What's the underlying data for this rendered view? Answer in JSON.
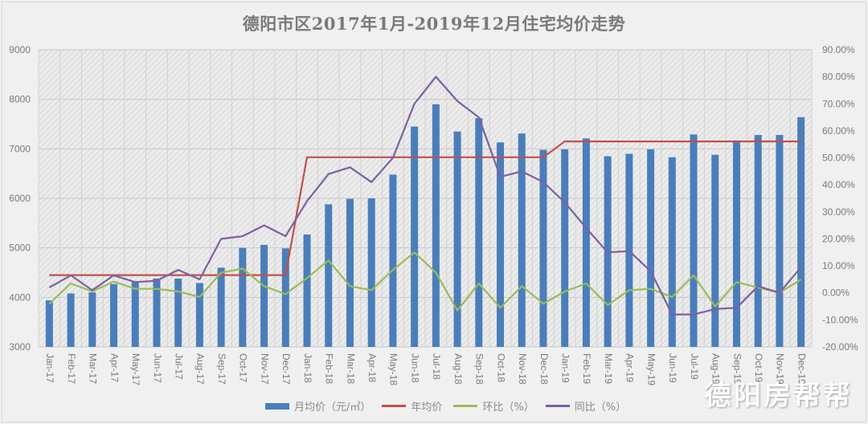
{
  "chart_data": {
    "type": "bar",
    "title": "德阳市区2017年1月-2019年12月住宅均价走势",
    "xlabel": "",
    "ylabel": "",
    "ylim": [
      3000,
      9000
    ],
    "y2lim": [
      -20,
      90
    ],
    "y_ticks": [
      "9000",
      "8000",
      "7000",
      "6000",
      "5000",
      "4000",
      "3000"
    ],
    "y2_ticks": [
      "90.00%",
      "80.00%",
      "70.00%",
      "60.00%",
      "50.00%",
      "40.00%",
      "30.00%",
      "20.00%",
      "10.00%",
      "0.00%",
      "-10.00%",
      "-20.00%"
    ],
    "grid": true,
    "legend_position": "bottom",
    "categories": [
      "Jan-17",
      "Feb-17",
      "Mar-17",
      "Apr-17",
      "May-17",
      "Jun-17",
      "Jul-17",
      "Aug-17",
      "Sep-17",
      "Oct-17",
      "Nov-17",
      "Dec-17",
      "Jan-18",
      "Feb-18",
      "Mar-18",
      "Apr-18",
      "May-18",
      "Jun-18",
      "Jul-18",
      "Aug-18",
      "Sep-18",
      "Oct-18",
      "Nov-18",
      "Dec-18",
      "Jan-19",
      "Feb-19",
      "Mar-19",
      "Apr-19",
      "May-19",
      "Jun-19",
      "Jul-19",
      "Aug-19",
      "Sep-19",
      "Oct-19",
      "Nov-19",
      "Dec-19"
    ],
    "series": [
      {
        "name": "月均价（元/㎡）",
        "type": "bar",
        "axis": "left",
        "color": "#4a7ebb",
        "values": [
          3940,
          4080,
          4100,
          4270,
          4330,
          4380,
          4380,
          4290,
          4600,
          5000,
          5060,
          4990,
          5270,
          5880,
          5990,
          6000,
          6480,
          7450,
          7900,
          7350,
          7620,
          7130,
          7310,
          6980,
          6990,
          7210,
          6850,
          6900,
          6990,
          6830,
          7290,
          6880,
          7170,
          7280,
          7280,
          7640
        ]
      },
      {
        "name": "年均价",
        "type": "line",
        "axis": "left",
        "color": "#c0504d",
        "values": [
          4450,
          4450,
          4450,
          4450,
          4450,
          4450,
          4450,
          4450,
          4450,
          4450,
          4450,
          4450,
          6830,
          6830,
          6830,
          6830,
          6830,
          6830,
          6830,
          6830,
          6830,
          6830,
          6830,
          6830,
          7150,
          7150,
          7150,
          7150,
          7150,
          7150,
          7150,
          7150,
          7150,
          7150,
          7150,
          7150
        ]
      },
      {
        "name": "环比（%）",
        "type": "line",
        "axis": "right",
        "color": "#9bbb59",
        "values": [
          -4.0,
          3.5,
          0.5,
          4.2,
          1.5,
          1.5,
          0.5,
          -1.5,
          7.5,
          9.0,
          2.5,
          -0.5,
          5.5,
          12.0,
          2.5,
          1.0,
          8.5,
          15.0,
          7.5,
          -6.5,
          3.5,
          -5.5,
          2.5,
          -4.0,
          0.5,
          3.5,
          -4.5,
          1.0,
          1.5,
          -1.5,
          6.5,
          -5.0,
          4.0,
          2.0,
          0.0,
          5.0
        ]
      },
      {
        "name": "同比（%）",
        "type": "line",
        "axis": "right",
        "color": "#7d60a0",
        "values": [
          2.0,
          6.5,
          1.0,
          6.5,
          4.0,
          4.5,
          8.5,
          5.0,
          20.0,
          21.0,
          25.0,
          21.0,
          34.0,
          44.0,
          46.5,
          41.0,
          50.0,
          70.0,
          80.0,
          71.0,
          65.0,
          43.0,
          45.0,
          41.0,
          33.5,
          24.0,
          15.0,
          15.5,
          8.0,
          -8.0,
          -8.0,
          -6.0,
          -5.5,
          2.5,
          0.0,
          9.5
        ]
      }
    ]
  },
  "legend": {
    "monthly_avg": "月均价（元/㎡）",
    "annual_avg": "年均价",
    "mom": "环比（%）",
    "yoy": "同比（%）"
  },
  "watermark": "德阳房帮帮"
}
